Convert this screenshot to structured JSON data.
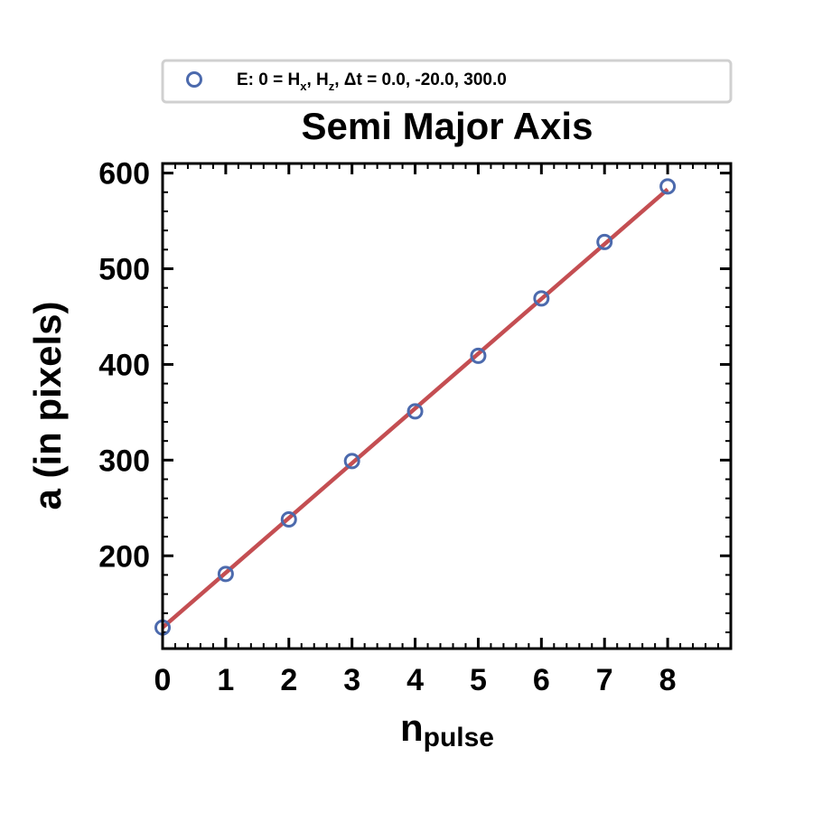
{
  "chart_data": {
    "type": "scatter",
    "title": "Semi Major Axis",
    "xlabel_main": "n",
    "xlabel_sub": "pulse",
    "ylabel": "a (in pixels)",
    "xlim": [
      0,
      9
    ],
    "ylim": [
      103,
      610
    ],
    "x_ticks": [
      0,
      1,
      2,
      3,
      4,
      5,
      6,
      7,
      8
    ],
    "y_ticks": [
      200,
      300,
      400,
      500,
      600
    ],
    "grid": false,
    "legend_position": "top (above title)",
    "legend_label_parts": {
      "prefix": "E: 0 = H",
      "sub1": "x",
      "mid": ", H",
      "sub2": "z",
      "suffix": ", Δt =  0.0, -20.0, 300.0"
    },
    "series": [
      {
        "x": [
          0,
          1,
          2,
          3,
          4,
          5,
          6,
          7,
          8
        ],
        "y": [
          125,
          181,
          238,
          299,
          351,
          409,
          469,
          528,
          586
        ],
        "marker": "open-circle",
        "color": "#4c6aad"
      }
    ],
    "fit_line": {
      "x": [
        0,
        8
      ],
      "y": [
        125,
        583
      ],
      "color": "#c44e52"
    }
  }
}
